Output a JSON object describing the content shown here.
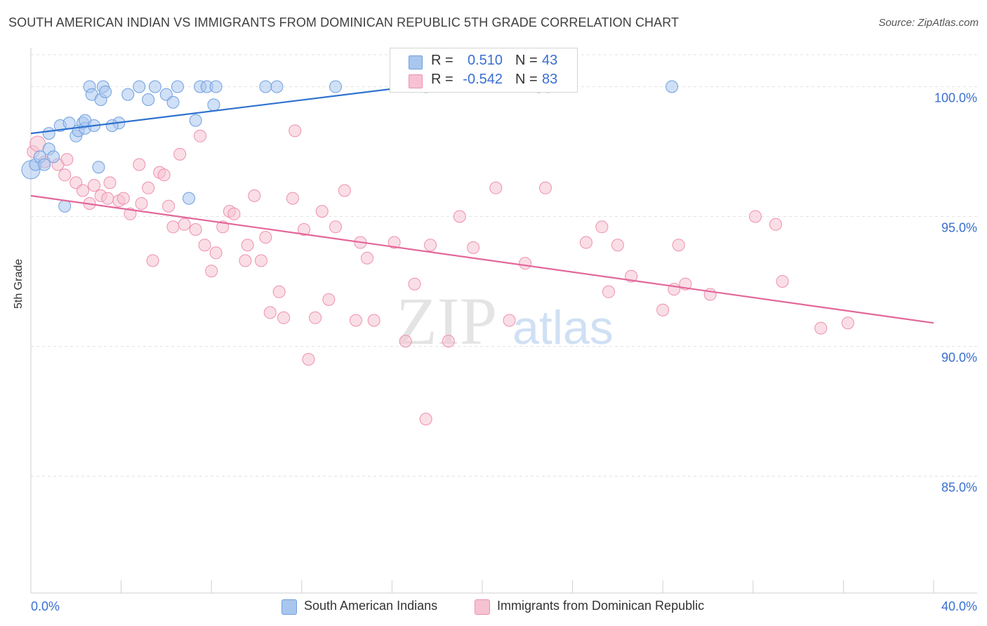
{
  "title": "SOUTH AMERICAN INDIAN VS IMMIGRANTS FROM DOMINICAN REPUBLIC 5TH GRADE CORRELATION CHART",
  "source": "Source: ZipAtlas.com",
  "watermark": {
    "zip": "ZIP",
    "atlas": "atlas"
  },
  "legend": {
    "rows": [
      {
        "r_label": "R =",
        "r_value": "0.510",
        "n_label": "N =",
        "n_value": "43"
      },
      {
        "r_label": "R =",
        "r_value": "-0.542",
        "n_label": "N =",
        "n_value": "83"
      }
    ]
  },
  "colors": {
    "blue_fill": "#a9c6ee",
    "blue_stroke": "#6f9fdf",
    "blue_line": "#2f72cf",
    "pink_fill": "#f6c2d2",
    "pink_stroke": "#ee90ae",
    "pink_line": "#e2679a",
    "tick_text": "#3a6fd1",
    "grid": "#e2e2e2"
  },
  "chart_data": {
    "type": "scatter",
    "title": "SOUTH AMERICAN INDIAN VS IMMIGRANTS FROM DOMINICAN REPUBLIC 5TH GRADE CORRELATION CHART",
    "xlabel": "",
    "ylabel": "5th Grade",
    "xlim": [
      0,
      40
    ],
    "ylim": [
      80.5,
      101.5
    ],
    "x_tick_labels": [
      "0.0%",
      "40.0%"
    ],
    "y_ticks": [
      85,
      90,
      95,
      100
    ],
    "y_tick_labels": [
      "85.0%",
      "90.0%",
      "95.0%",
      "100.0%"
    ],
    "grid": true,
    "legend_position": "bottom",
    "series": [
      {
        "name": "South American Indians",
        "color": "#6f9fdf",
        "trend": {
          "x": [
            0,
            16.8
          ],
          "y": [
            98.2,
            100.0
          ]
        },
        "points": [
          [
            0.0,
            96.8
          ],
          [
            0.2,
            97.0
          ],
          [
            0.4,
            97.3
          ],
          [
            0.6,
            97.0
          ],
          [
            0.8,
            97.6
          ],
          [
            1.0,
            97.3
          ],
          [
            0.8,
            98.2
          ],
          [
            1.3,
            98.5
          ],
          [
            1.7,
            98.6
          ],
          [
            2.0,
            98.1
          ],
          [
            2.1,
            98.3
          ],
          [
            2.3,
            98.6
          ],
          [
            2.4,
            98.4
          ],
          [
            2.4,
            98.7
          ],
          [
            2.8,
            98.5
          ],
          [
            3.9,
            98.6
          ],
          [
            1.5,
            95.4
          ],
          [
            3.0,
            96.9
          ],
          [
            2.6,
            100.0
          ],
          [
            3.2,
            100.0
          ],
          [
            4.8,
            100.0
          ],
          [
            5.5,
            100.0
          ],
          [
            6.5,
            100.0
          ],
          [
            7.5,
            100.0
          ],
          [
            7.8,
            100.0
          ],
          [
            8.2,
            100.0
          ],
          [
            10.4,
            100.0
          ],
          [
            10.9,
            100.0
          ],
          [
            13.5,
            100.0
          ],
          [
            17.5,
            100.0
          ],
          [
            22.5,
            100.0
          ],
          [
            28.4,
            100.0
          ],
          [
            2.7,
            99.7
          ],
          [
            3.1,
            99.5
          ],
          [
            3.3,
            99.8
          ],
          [
            4.3,
            99.7
          ],
          [
            5.2,
            99.5
          ],
          [
            6.0,
            99.7
          ],
          [
            6.3,
            99.4
          ],
          [
            8.1,
            99.3
          ],
          [
            7.3,
            98.7
          ],
          [
            3.6,
            98.5
          ],
          [
            7.0,
            95.7
          ]
        ]
      },
      {
        "name": "Immigrants from Dominican Republic",
        "color": "#ee90ae",
        "trend": {
          "x": [
            0,
            40
          ],
          "y": [
            95.8,
            90.9
          ]
        },
        "points": [
          [
            0.1,
            97.5
          ],
          [
            0.3,
            97.8
          ],
          [
            0.6,
            97.1
          ],
          [
            1.2,
            97.0
          ],
          [
            1.5,
            96.6
          ],
          [
            1.6,
            97.2
          ],
          [
            2.0,
            96.3
          ],
          [
            2.3,
            96.0
          ],
          [
            2.6,
            95.5
          ],
          [
            2.8,
            96.2
          ],
          [
            3.1,
            95.8
          ],
          [
            3.4,
            95.7
          ],
          [
            3.5,
            96.3
          ],
          [
            3.9,
            95.6
          ],
          [
            4.1,
            95.7
          ],
          [
            4.4,
            95.1
          ],
          [
            4.8,
            97.0
          ],
          [
            4.9,
            95.5
          ],
          [
            5.2,
            96.1
          ],
          [
            5.4,
            93.3
          ],
          [
            5.7,
            96.7
          ],
          [
            5.9,
            96.6
          ],
          [
            6.1,
            95.4
          ],
          [
            6.3,
            94.6
          ],
          [
            6.6,
            97.4
          ],
          [
            6.8,
            94.7
          ],
          [
            7.3,
            94.5
          ],
          [
            7.5,
            98.1
          ],
          [
            7.7,
            93.9
          ],
          [
            8.0,
            92.9
          ],
          [
            8.2,
            93.6
          ],
          [
            8.5,
            94.6
          ],
          [
            8.8,
            95.2
          ],
          [
            9.0,
            95.1
          ],
          [
            9.5,
            93.3
          ],
          [
            9.6,
            93.9
          ],
          [
            9.9,
            95.8
          ],
          [
            10.2,
            93.3
          ],
          [
            10.4,
            94.2
          ],
          [
            10.6,
            91.3
          ],
          [
            11.0,
            92.1
          ],
          [
            11.2,
            91.1
          ],
          [
            11.6,
            95.7
          ],
          [
            11.7,
            98.3
          ],
          [
            12.1,
            94.5
          ],
          [
            12.3,
            89.5
          ],
          [
            12.6,
            91.1
          ],
          [
            12.9,
            95.2
          ],
          [
            13.2,
            91.8
          ],
          [
            13.5,
            94.6
          ],
          [
            13.9,
            96.0
          ],
          [
            14.4,
            91.0
          ],
          [
            14.6,
            94.0
          ],
          [
            14.9,
            93.4
          ],
          [
            15.2,
            91.0
          ],
          [
            16.1,
            94.0
          ],
          [
            16.6,
            90.2
          ],
          [
            17.0,
            92.4
          ],
          [
            17.5,
            87.2
          ],
          [
            17.7,
            93.9
          ],
          [
            18.5,
            90.2
          ],
          [
            19.0,
            95.0
          ],
          [
            19.6,
            93.8
          ],
          [
            20.6,
            96.1
          ],
          [
            21.2,
            91.0
          ],
          [
            21.9,
            93.2
          ],
          [
            22.8,
            96.1
          ],
          [
            24.6,
            94.0
          ],
          [
            25.3,
            94.6
          ],
          [
            25.6,
            92.1
          ],
          [
            26.0,
            93.9
          ],
          [
            26.6,
            92.7
          ],
          [
            28.0,
            91.4
          ],
          [
            28.5,
            92.2
          ],
          [
            28.7,
            93.9
          ],
          [
            29.0,
            92.4
          ],
          [
            30.1,
            92.0
          ],
          [
            32.1,
            95.0
          ],
          [
            33.0,
            94.7
          ],
          [
            33.3,
            92.5
          ],
          [
            35.0,
            90.7
          ],
          [
            36.2,
            90.9
          ],
          [
            22.9,
            100.0
          ]
        ]
      }
    ]
  }
}
